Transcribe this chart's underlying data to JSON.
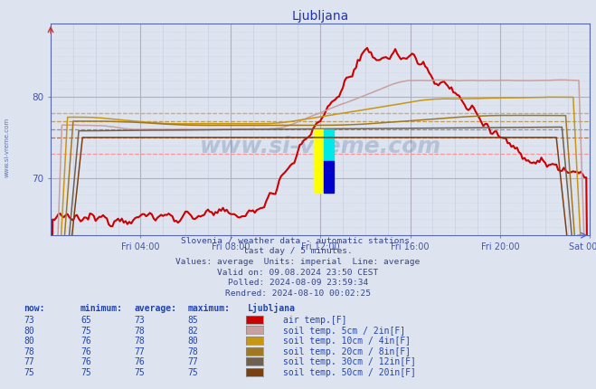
{
  "title": "Ljubljana",
  "background_color": "#dde4f0",
  "plot_bg_color": "#dde4f0",
  "x_labels": [
    "Fri 04:00",
    "Fri 08:00",
    "Fri 12:00",
    "Fri 16:00",
    "Fri 20:00",
    "Sat 00:00"
  ],
  "x_tick_pos": [
    48,
    96,
    144,
    192,
    240,
    288
  ],
  "total_points": 288,
  "y_min": 63,
  "y_max": 89,
  "y_ticks": [
    70,
    80
  ],
  "subtitle_lines": [
    "Slovenia / weather data - automatic stations.",
    "last day / 5 minutes.",
    "Values: average  Units: imperial  Line: average",
    "Valid on: 09.08.2024 23:50 CEST",
    "Polled: 2024-08-09 23:59:34",
    "Rendred: 2024-08-10 00:02:25"
  ],
  "legend_headers": [
    "now:",
    "minimum:",
    "average:",
    "maximum:",
    "Ljubljana"
  ],
  "legend_rows": [
    {
      "now": "73",
      "min": "65",
      "avg": "73",
      "max": "85",
      "color": "#cc0000",
      "label": "air temp.[F]"
    },
    {
      "now": "80",
      "min": "75",
      "avg": "78",
      "max": "82",
      "color": "#c8a0a0",
      "label": "soil temp. 5cm / 2in[F]"
    },
    {
      "now": "80",
      "min": "76",
      "avg": "78",
      "max": "80",
      "color": "#c89610",
      "label": "soil temp. 10cm / 4in[F]"
    },
    {
      "now": "78",
      "min": "76",
      "avg": "77",
      "max": "78",
      "color": "#a07820",
      "label": "soil temp. 20cm / 8in[F]"
    },
    {
      "now": "77",
      "min": "76",
      "avg": "76",
      "max": "77",
      "color": "#706050",
      "label": "soil temp. 30cm / 12in[F]"
    },
    {
      "now": "75",
      "min": "75",
      "avg": "75",
      "max": "75",
      "color": "#7a4010",
      "label": "soil temp. 50cm / 20in[F]"
    }
  ],
  "series_colors": [
    "#cc0000",
    "#c8a0a0",
    "#c89610",
    "#a07820",
    "#706050",
    "#7a4010"
  ],
  "avg_line_colors": [
    "#ff8888",
    "#ddbcbc",
    "#d4a840",
    "#b89040",
    "#908070",
    "#a06030"
  ],
  "watermark": "www.si-vreme.com",
  "text_color": "#4455aa"
}
